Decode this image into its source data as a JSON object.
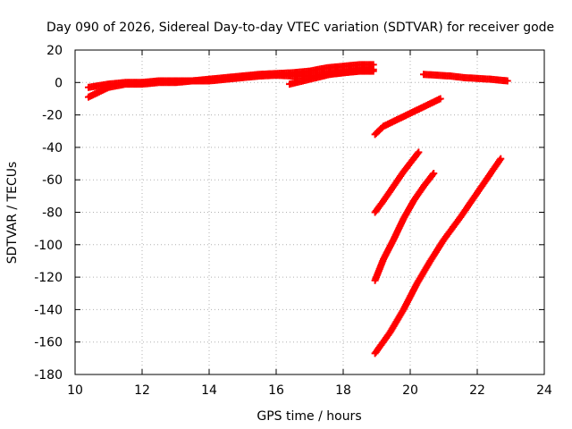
{
  "chart_data": {
    "type": "scatter",
    "title": "Day 090 of 2026, Sidereal Day-to-day VTEC variation (SDTVAR) for receiver gode",
    "xlabel": "GPS time / hours",
    "ylabel": "SDTVAR / TECUs",
    "xlim": [
      10,
      24
    ],
    "ylim": [
      -180,
      20
    ],
    "xticks": [
      "10",
      "12",
      "14",
      "16",
      "18",
      "20",
      "22",
      "24"
    ],
    "yticks": [
      "20",
      "0",
      "-20",
      "-40",
      "-60",
      "-80",
      "-100",
      "-120",
      "-140",
      "-160",
      "-180"
    ],
    "grid": true,
    "marker": "plus",
    "color": "#ff0000",
    "series": [
      {
        "points": [
          [
            10.4,
            -3
          ],
          [
            11.0,
            -1
          ],
          [
            11.5,
            0
          ],
          [
            12.0,
            0
          ],
          [
            12.5,
            1
          ],
          [
            13.0,
            1
          ],
          [
            13.5,
            1
          ],
          [
            14.0,
            2
          ],
          [
            14.5,
            3
          ],
          [
            15.0,
            4
          ],
          [
            15.5,
            5
          ],
          [
            16.0,
            5.5
          ],
          [
            16.5,
            6
          ],
          [
            17.0,
            7
          ],
          [
            17.5,
            9
          ],
          [
            18.0,
            10
          ],
          [
            18.5,
            11
          ],
          [
            18.9,
            11
          ]
        ]
      },
      {
        "points": [
          [
            10.4,
            -9
          ],
          [
            11.0,
            -3
          ],
          [
            11.5,
            -1
          ],
          [
            12.0,
            -1
          ],
          [
            12.5,
            0
          ],
          [
            13.0,
            0
          ],
          [
            13.5,
            1
          ],
          [
            14.0,
            1
          ],
          [
            14.5,
            2
          ],
          [
            15.0,
            3
          ],
          [
            15.5,
            4
          ],
          [
            16.0,
            4.5
          ],
          [
            16.5,
            4
          ],
          [
            17.0,
            4
          ],
          [
            17.5,
            5
          ],
          [
            18.0,
            6
          ],
          [
            18.5,
            7
          ],
          [
            18.9,
            7
          ]
        ]
      },
      {
        "points": [
          [
            16.4,
            -1
          ],
          [
            16.8,
            1
          ],
          [
            17.2,
            3
          ],
          [
            17.6,
            5
          ],
          [
            18.0,
            6
          ],
          [
            18.4,
            7
          ],
          [
            18.9,
            8
          ]
        ]
      },
      {
        "points": [
          [
            20.4,
            5
          ],
          [
            20.8,
            4.5
          ],
          [
            21.2,
            4
          ],
          [
            21.6,
            3
          ],
          [
            22.0,
            2.5
          ],
          [
            22.4,
            2
          ],
          [
            22.9,
            1
          ]
        ]
      },
      {
        "points": [
          [
            18.95,
            -32
          ],
          [
            19.2,
            -27
          ],
          [
            19.6,
            -23
          ],
          [
            20.0,
            -19
          ],
          [
            20.4,
            -15
          ],
          [
            20.9,
            -10
          ]
        ]
      },
      {
        "points": [
          [
            18.95,
            -80
          ],
          [
            19.2,
            -73
          ],
          [
            19.5,
            -64
          ],
          [
            19.8,
            -55
          ],
          [
            20.1,
            -47
          ],
          [
            20.25,
            -43
          ]
        ]
      },
      {
        "points": [
          [
            18.95,
            -122
          ],
          [
            19.2,
            -109
          ],
          [
            19.5,
            -97
          ],
          [
            19.8,
            -84
          ],
          [
            20.1,
            -73
          ],
          [
            20.4,
            -64
          ],
          [
            20.7,
            -56
          ]
        ]
      },
      {
        "points": [
          [
            18.95,
            -167
          ],
          [
            19.4,
            -154
          ],
          [
            19.8,
            -140
          ],
          [
            20.2,
            -124
          ],
          [
            20.6,
            -110
          ],
          [
            21.0,
            -97
          ],
          [
            21.5,
            -83
          ],
          [
            22.0,
            -68
          ],
          [
            22.4,
            -56
          ],
          [
            22.7,
            -47
          ]
        ]
      }
    ]
  }
}
